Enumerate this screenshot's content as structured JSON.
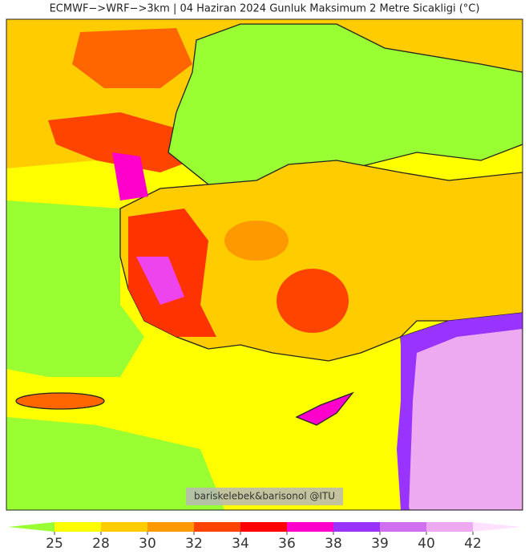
{
  "title": "ECMWF−>WRF−>3km | 04 Haziran 2024 Gunluk Maksimum 2 Metre Sicakligi (°C)",
  "watermark": "bariskelebek&barisonol @ITU",
  "colorbar": {
    "ticks": [
      25,
      28,
      30,
      32,
      34,
      36,
      38,
      39,
      40,
      42
    ],
    "colors": [
      "#99ff33",
      "#ffff00",
      "#ffcc00",
      "#ff9900",
      "#ff4400",
      "#ff0000",
      "#ff00cc",
      "#9933ff",
      "#d070f0",
      "#eeaaf0",
      "#ffe0ff"
    ]
  }
}
